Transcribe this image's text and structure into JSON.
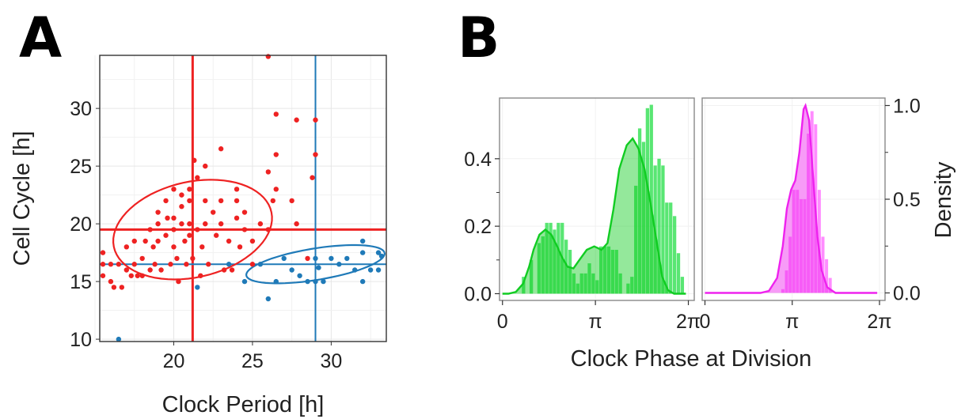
{
  "panels": [
    {
      "letter": "A",
      "chart_data": {
        "type": "scatter",
        "xlabel": "Clock Period [h]",
        "ylabel": "Cell Cycle [h]",
        "xlim": [
          15.3,
          33.5
        ],
        "ylim": [
          9.8,
          34.6
        ],
        "x_ticks": [
          20,
          25,
          30
        ],
        "y_ticks": [
          10,
          15,
          20,
          25,
          30
        ],
        "grid": true,
        "series": [
          {
            "color": "#ee2222",
            "points": [
              [
                15.5,
                16.5
              ],
              [
                15.5,
                17.5
              ],
              [
                15.5,
                15.5
              ],
              [
                16,
                15
              ],
              [
                16,
                16.5
              ],
              [
                16.2,
                14.5
              ],
              [
                16.5,
                16.5
              ],
              [
                16.7,
                14.5
              ],
              [
                17,
                16
              ],
              [
                17,
                18
              ],
              [
                17.3,
                15.5
              ],
              [
                17.5,
                16.5
              ],
              [
                17.5,
                18.5
              ],
              [
                17.7,
                15.5
              ],
              [
                18,
                15.5
              ],
              [
                18,
                17
              ],
              [
                18.2,
                18.5
              ],
              [
                18.5,
                16
              ],
              [
                18.5,
                19.5
              ],
              [
                18.7,
                18
              ],
              [
                18.8,
                16.5
              ],
              [
                19,
                20
              ],
              [
                19,
                21
              ],
              [
                19,
                18.5
              ],
              [
                19.2,
                16
              ],
              [
                19.5,
                22
              ],
              [
                19.5,
                19
              ],
              [
                19.6,
                20.5
              ],
              [
                19.8,
                16.5
              ],
              [
                20,
                18
              ],
              [
                20,
                19.5
              ],
              [
                20,
                20.5
              ],
              [
                20,
                23
              ],
              [
                20.2,
                17
              ],
              [
                20.3,
                15
              ],
              [
                20.5,
                20
              ],
              [
                20.5,
                22.5
              ],
              [
                20.5,
                21.5
              ],
              [
                20.7,
                18.5
              ],
              [
                20.8,
                16.5
              ],
              [
                21,
                19
              ],
              [
                21,
                20
              ],
              [
                21,
                22
              ],
              [
                21,
                23
              ],
              [
                21.2,
                17
              ],
              [
                21.3,
                25.5
              ],
              [
                21.5,
                19.5
              ],
              [
                21.5,
                24
              ],
              [
                21.7,
                15.5
              ],
              [
                21.8,
                18
              ],
              [
                22,
                20
              ],
              [
                22,
                22
              ],
              [
                22,
                25
              ],
              [
                22.2,
                16.5
              ],
              [
                22.5,
                21
              ],
              [
                22.7,
                19
              ],
              [
                23,
                20
              ],
              [
                23,
                22
              ],
              [
                23,
                26.5
              ],
              [
                23.2,
                16
              ],
              [
                23.5,
                18.5
              ],
              [
                23.7,
                16
              ],
              [
                24,
                20.5
              ],
              [
                24,
                22
              ],
              [
                24,
                23
              ],
              [
                24.2,
                18
              ],
              [
                24.5,
                21
              ],
              [
                24.5,
                19.5
              ],
              [
                25,
                18.5
              ],
              [
                25,
                16.5
              ],
              [
                25.5,
                20
              ],
              [
                26,
                19.5
              ],
              [
                26,
                24.5
              ],
              [
                26,
                34.5
              ],
              [
                26.3,
                22
              ],
              [
                26.5,
                23
              ],
              [
                26.5,
                26
              ],
              [
                26.5,
                29.5
              ],
              [
                27.5,
                22
              ],
              [
                27.8,
                20
              ],
              [
                27.8,
                29
              ],
              [
                28.5,
                17
              ],
              [
                28.8,
                24
              ],
              [
                29,
                26
              ],
              [
                29,
                29
              ]
            ]
          },
          {
            "color": "#1f7ab8",
            "points": [
              [
                16.5,
                10
              ],
              [
                21.5,
                14.5
              ],
              [
                23.5,
                16.5
              ],
              [
                24.5,
                15
              ],
              [
                25.5,
                16.5
              ],
              [
                26,
                13.5
              ],
              [
                26.5,
                15
              ],
              [
                27,
                17
              ],
              [
                27.5,
                16
              ],
              [
                28,
                15.5
              ],
              [
                28.5,
                15
              ],
              [
                29,
                15
              ],
              [
                29,
                17
              ],
              [
                29.2,
                16.2
              ],
              [
                29.5,
                15
              ],
              [
                30,
                17
              ],
              [
                30.5,
                16.5
              ],
              [
                31,
                17
              ],
              [
                31.5,
                16
              ],
              [
                32,
                17.5
              ],
              [
                32,
                18.5
              ],
              [
                32,
                15
              ],
              [
                32.5,
                16
              ],
              [
                33,
                17.5
              ],
              [
                33,
                16
              ],
              [
                33.2,
                17.2
              ]
            ]
          }
        ],
        "reference_lines": [
          {
            "color": "#ee2222",
            "x": 21.2,
            "y": 19.5
          },
          {
            "color": "#1f7ab8",
            "x": 29,
            "y": 16.5
          }
        ],
        "ellipses": [
          {
            "color": "#ee2222",
            "center": [
              21.2,
              19.5
            ],
            "rx": 5.3,
            "ry": 4.0,
            "angle_deg": 28
          },
          {
            "color": "#1f7ab8",
            "center": [
              29.0,
              16.5
            ],
            "rx": 4.5,
            "ry": 1.35,
            "angle_deg": 13
          }
        ]
      }
    },
    {
      "letter": "B",
      "chart_data": {
        "type": "histogram",
        "xlabel": "Clock Phase at Division",
        "ylabel_left": "",
        "ylabel_right": "Density",
        "subplots": [
          {
            "color": "#11cc22",
            "bar_color": "#22dd44",
            "xlim": [
              -0.1,
              6.483
            ],
            "ylim": [
              -0.02,
              0.58
            ],
            "x_tick_labels": [
              "0",
              "π",
              "2π"
            ],
            "x_tick_values": [
              0,
              3.1416,
              6.2832
            ],
            "y_tick_labels": [
              "0.0",
              "0.2",
              "0.4"
            ],
            "y_tick_values": [
              0,
              0.2,
              0.4
            ],
            "bars": [
              0.0,
              0.0,
              0.0,
              0.0,
              0.0,
              0.05,
              0.0,
              0.1,
              0.0,
              0.15,
              0.17,
              0.21,
              0.21,
              0.19,
              0.21,
              0.21,
              0.16,
              0.13,
              0.06,
              0.03,
              0.06,
              0.06,
              0.09,
              0.06,
              0.04,
              0.14,
              0.14,
              0.14,
              0.13,
              0.13,
              0.06,
              0.0,
              0.03,
              0.05,
              0.32,
              0.49,
              0.45,
              0.55,
              0.56,
              0.38,
              0.4,
              0.38,
              0.27,
              0.27,
              0.23,
              0.12,
              0.05,
              0.0
            ],
            "density": [
              [
                0.0,
                0.0
              ],
              [
                0.2,
                0.0
              ],
              [
                0.45,
                0.005
              ],
              [
                0.7,
                0.03
              ],
              [
                0.9,
                0.08
              ],
              [
                1.05,
                0.13
              ],
              [
                1.25,
                0.175
              ],
              [
                1.45,
                0.19
              ],
              [
                1.65,
                0.175
              ],
              [
                1.85,
                0.14
              ],
              [
                2.0,
                0.11
              ],
              [
                2.2,
                0.08
              ],
              [
                2.4,
                0.075
              ],
              [
                2.6,
                0.1
              ],
              [
                2.85,
                0.13
              ],
              [
                3.1,
                0.14
              ],
              [
                3.35,
                0.13
              ],
              [
                3.55,
                0.15
              ],
              [
                3.75,
                0.25
              ],
              [
                3.95,
                0.37
              ],
              [
                4.2,
                0.44
              ],
              [
                4.4,
                0.46
              ],
              [
                4.6,
                0.43
              ],
              [
                4.8,
                0.37
              ],
              [
                5.0,
                0.27
              ],
              [
                5.2,
                0.16
              ],
              [
                5.4,
                0.05
              ],
              [
                5.6,
                0.01
              ],
              [
                5.8,
                0.0
              ],
              [
                6.2,
                0.0
              ]
            ]
          },
          {
            "color": "#ee22ee",
            "bar_color": "#ff66ff",
            "xlim": [
              -0.1,
              6.483
            ],
            "ylim": [
              -0.04,
              1.04
            ],
            "x_tick_labels": [
              "0",
              "π",
              "2π"
            ],
            "x_tick_values": [
              0,
              3.1416,
              6.2832
            ],
            "y_tick_labels": [
              "0.0",
              "0.5",
              "1.0"
            ],
            "y_tick_values": [
              0,
              0.5,
              1.0
            ],
            "bars": [
              0.0,
              0.0,
              0.0,
              0.0,
              0.0,
              0.0,
              0.0,
              0.0,
              0.0,
              0.0,
              0.0,
              0.0,
              0.0,
              0.0,
              0.0,
              0.0,
              0.0,
              0.0,
              0.0,
              0.0,
              0.0,
              0.02,
              0.12,
              0.3,
              0.55,
              0.55,
              0.5,
              0.5,
              0.85,
              0.97,
              0.9,
              0.55,
              0.3,
              0.18,
              0.08,
              0.0,
              0.0,
              0.0,
              0.0,
              0.0,
              0.0,
              0.0,
              0.0,
              0.0,
              0.0,
              0.0,
              0.0,
              0.0
            ],
            "density": [
              [
                0.0,
                0.0
              ],
              [
                2.0,
                0.0
              ],
              [
                2.3,
                0.01
              ],
              [
                2.6,
                0.08
              ],
              [
                2.8,
                0.25
              ],
              [
                2.95,
                0.45
              ],
              [
                3.1,
                0.55
              ],
              [
                3.25,
                0.6
              ],
              [
                3.4,
                0.75
              ],
              [
                3.55,
                0.98
              ],
              [
                3.62,
                1.0
              ],
              [
                3.75,
                0.92
              ],
              [
                3.9,
                0.6
              ],
              [
                4.05,
                0.3
              ],
              [
                4.2,
                0.12
              ],
              [
                4.4,
                0.03
              ],
              [
                4.7,
                0.0
              ],
              [
                6.2,
                0.0
              ]
            ]
          }
        ]
      }
    }
  ]
}
